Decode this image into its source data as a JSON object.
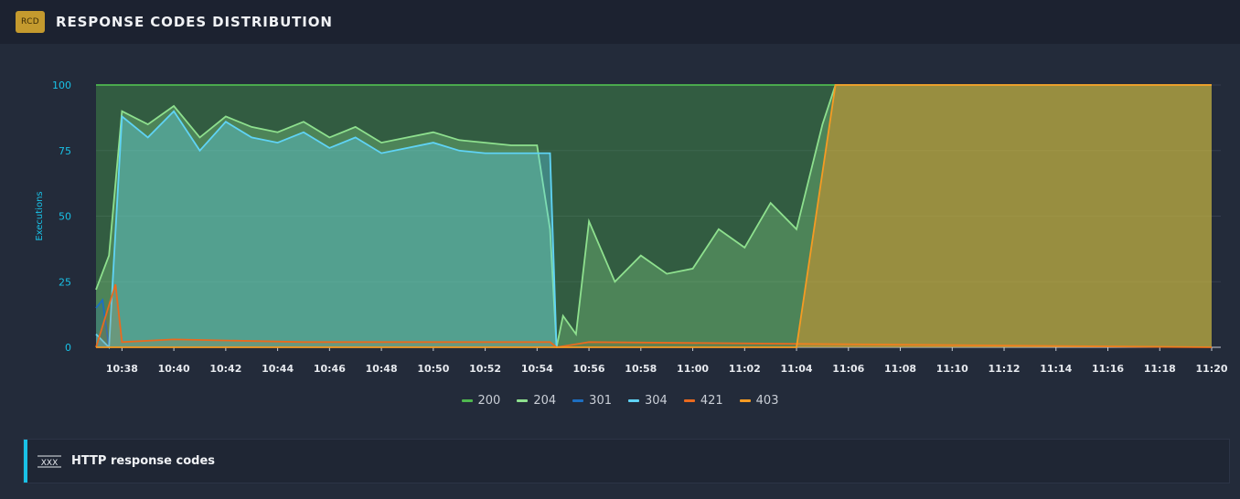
{
  "header": {
    "badge": "RCD",
    "title": "RESPONSE CODES DISTRIBUTION"
  },
  "chart_data": {
    "type": "area",
    "ylabel": "Executions",
    "xlabel": "",
    "ylim": [
      0,
      100
    ],
    "xlim": [
      "10:37",
      "11:20"
    ],
    "y_ticks": [
      "0",
      "25",
      "50",
      "75",
      "100"
    ],
    "x_ticks": [
      "10:38",
      "10:40",
      "10:42",
      "10:44",
      "10:46",
      "10:48",
      "10:50",
      "10:52",
      "10:54",
      "10:56",
      "10:58",
      "11:00",
      "11:02",
      "11:04",
      "11:06",
      "11:08",
      "11:10",
      "11:12",
      "11:14",
      "11:16",
      "11:18",
      "11:20"
    ],
    "legend_position": "bottom-center",
    "grid": true,
    "series": [
      {
        "name": "200",
        "color": "#4fb84f",
        "x": [
          "10:37",
          "11:20"
        ],
        "values": [
          100,
          100
        ]
      },
      {
        "name": "204",
        "color": "#8ee08e",
        "x": [
          "10:37",
          "10:37:30",
          "10:38",
          "10:39",
          "10:40",
          "10:41",
          "10:42",
          "10:43",
          "10:44",
          "10:45",
          "10:46",
          "10:47",
          "10:48",
          "10:49",
          "10:50",
          "10:51",
          "10:52",
          "10:53",
          "10:54",
          "10:54:30",
          "10:54:45",
          "10:55",
          "10:55:30",
          "10:56",
          "10:57",
          "10:58",
          "10:59",
          "11:00",
          "11:01",
          "11:02",
          "11:03",
          "11:04",
          "11:05",
          "11:05:30",
          "11:20"
        ],
        "values": [
          22,
          35,
          90,
          85,
          92,
          80,
          88,
          84,
          82,
          86,
          80,
          84,
          78,
          80,
          82,
          79,
          78,
          77,
          77,
          45,
          0,
          12,
          5,
          48,
          25,
          35,
          28,
          30,
          45,
          38,
          55,
          45,
          85,
          100,
          100
        ]
      },
      {
        "name": "301",
        "color": "#1d6fc2",
        "x": [
          "10:37",
          "10:37:15",
          "10:37:30"
        ],
        "values": [
          15,
          18,
          0
        ]
      },
      {
        "name": "304",
        "color": "#5fd3f5",
        "x": [
          "10:37",
          "10:37:30",
          "10:38",
          "10:39",
          "10:40",
          "10:41",
          "10:42",
          "10:43",
          "10:44",
          "10:45",
          "10:46",
          "10:47",
          "10:48",
          "10:49",
          "10:50",
          "10:51",
          "10:52",
          "10:53",
          "10:54",
          "10:54:30",
          "10:54:45"
        ],
        "values": [
          5,
          0,
          88,
          80,
          90,
          75,
          86,
          80,
          78,
          82,
          76,
          80,
          74,
          76,
          78,
          75,
          74,
          74,
          74,
          74,
          0
        ]
      },
      {
        "name": "421",
        "color": "#ea6a1e",
        "x": [
          "10:37",
          "10:37:45",
          "10:38",
          "10:40",
          "10:45",
          "10:50",
          "10:54:30",
          "10:54:45",
          "10:56",
          "11:20"
        ],
        "values": [
          0,
          24,
          2,
          3,
          2,
          2,
          2,
          0,
          2,
          0
        ]
      },
      {
        "name": "403",
        "color": "#f59b23",
        "x": [
          "10:37",
          "11:04",
          "11:05:30",
          "11:11",
          "11:11:45",
          "11:20"
        ],
        "values": [
          0,
          0,
          100,
          100,
          100,
          100
        ]
      }
    ]
  },
  "info": {
    "icon": "xxx-icon",
    "label": "HTTP response codes"
  }
}
